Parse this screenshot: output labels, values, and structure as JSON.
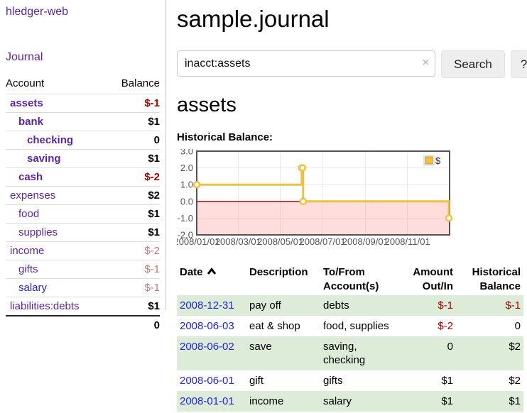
{
  "app": {
    "brand": "hledger-web"
  },
  "sidebar": {
    "journal_link": "Journal",
    "accounts": {
      "col_account": "Account",
      "col_balance": "Balance",
      "rows": [
        {
          "name": "assets",
          "balance": "$-1",
          "indent": 0,
          "in_query": true
        },
        {
          "name": "bank",
          "balance": "$1",
          "indent": 1,
          "in_query": true
        },
        {
          "name": "checking",
          "balance": "0",
          "indent": 2,
          "in_query": true
        },
        {
          "name": "saving",
          "balance": "$1",
          "indent": 2,
          "in_query": true
        },
        {
          "name": "cash",
          "balance": "$-2",
          "indent": 1,
          "in_query": true
        },
        {
          "name": "expenses",
          "balance": "$2",
          "indent": 0,
          "in_query": false
        },
        {
          "name": "food",
          "balance": "$1",
          "indent": 1,
          "in_query": false
        },
        {
          "name": "supplies",
          "balance": "$1",
          "indent": 1,
          "in_query": false
        },
        {
          "name": "income",
          "balance": "$-2",
          "indent": 0,
          "in_query": false,
          "muted": true
        },
        {
          "name": "gifts",
          "balance": "$-1",
          "indent": 1,
          "in_query": false,
          "muted": true
        },
        {
          "name": "salary",
          "balance": "$-1",
          "indent": 1,
          "in_query": false,
          "muted": true,
          "blue": true
        },
        {
          "name": "liabilities:debts",
          "balance": "$1",
          "indent": 0,
          "in_query": false
        }
      ],
      "total": "0"
    }
  },
  "header": {
    "title": "sample.journal"
  },
  "search": {
    "value": "inacct:assets",
    "button_label": "Search",
    "help_label": "?"
  },
  "icons": {
    "clear": "×",
    "sort": "ascending-chevron"
  },
  "page": {
    "heading": "assets",
    "chart_title": "Historical Balance:"
  },
  "chart_data": {
    "type": "line",
    "step": true,
    "title": "Historical Balance",
    "legend": "$",
    "legend_position": "top-right",
    "grid": true,
    "ylim": [
      -2,
      3
    ],
    "y_ticks": [
      3.0,
      2.0,
      1.0,
      0.0,
      -1.0,
      -2.0
    ],
    "x_max_day": 366,
    "x_ticks": [
      {
        "label": "2008/01/01",
        "day": 0
      },
      {
        "label": "2008/03/01",
        "day": 60
      },
      {
        "label": "2008/05/01",
        "day": 121
      },
      {
        "label": "2008/07/01",
        "day": 182
      },
      {
        "label": "2008/09/01",
        "day": 244
      },
      {
        "label": "2008/11/01",
        "day": 305
      }
    ],
    "series": [
      {
        "name": "$",
        "color": "#edc240",
        "points": [
          {
            "date": "2008/01/01",
            "day": 0,
            "value": 1
          },
          {
            "date": "2008/06/01",
            "day": 152,
            "value": 2
          },
          {
            "date": "2008/06/02",
            "day": 153,
            "value": 2
          },
          {
            "date": "2008/06/03",
            "day": 154,
            "value": 0
          },
          {
            "date": "2008/12/31",
            "day": 365,
            "value": -1
          }
        ]
      }
    ],
    "colors": {
      "negative_region_fill": "rgba(255,170,170,0.40)",
      "zero_line": "#990000",
      "plot_border": "#545454",
      "gridline": "#e8e8e8",
      "tick_text": "#545454"
    }
  },
  "register": {
    "headers": {
      "date": "Date",
      "description": "Description",
      "account": "To/From Account(s)",
      "amount": "Amount Out/In",
      "balance": "Historical Balance"
    },
    "rows": [
      {
        "date": "2008-12-31",
        "description": "pay off",
        "accounts": "debts",
        "amount": "$-1",
        "balance": "$-1"
      },
      {
        "date": "2008-06-03",
        "description": "eat & shop",
        "accounts": "food, supplies",
        "amount": "$-2",
        "balance": "0"
      },
      {
        "date": "2008-06-02",
        "description": "save",
        "accounts": "saving, checking",
        "amount": "0",
        "balance": "$2"
      },
      {
        "date": "2008-06-01",
        "description": "gift",
        "accounts": "gifts",
        "amount": "$1",
        "balance": "$2"
      },
      {
        "date": "2008-01-01",
        "description": "income",
        "accounts": "salary",
        "amount": "$1",
        "balance": "$1"
      }
    ]
  },
  "colors": {
    "link_purple": "#5b27a1",
    "link_blue": "#2424dd",
    "negative_red": "#a40000",
    "negative_muted": "#c07a7a",
    "row_green": "#dcecd8",
    "series_gold": "#edc240"
  }
}
